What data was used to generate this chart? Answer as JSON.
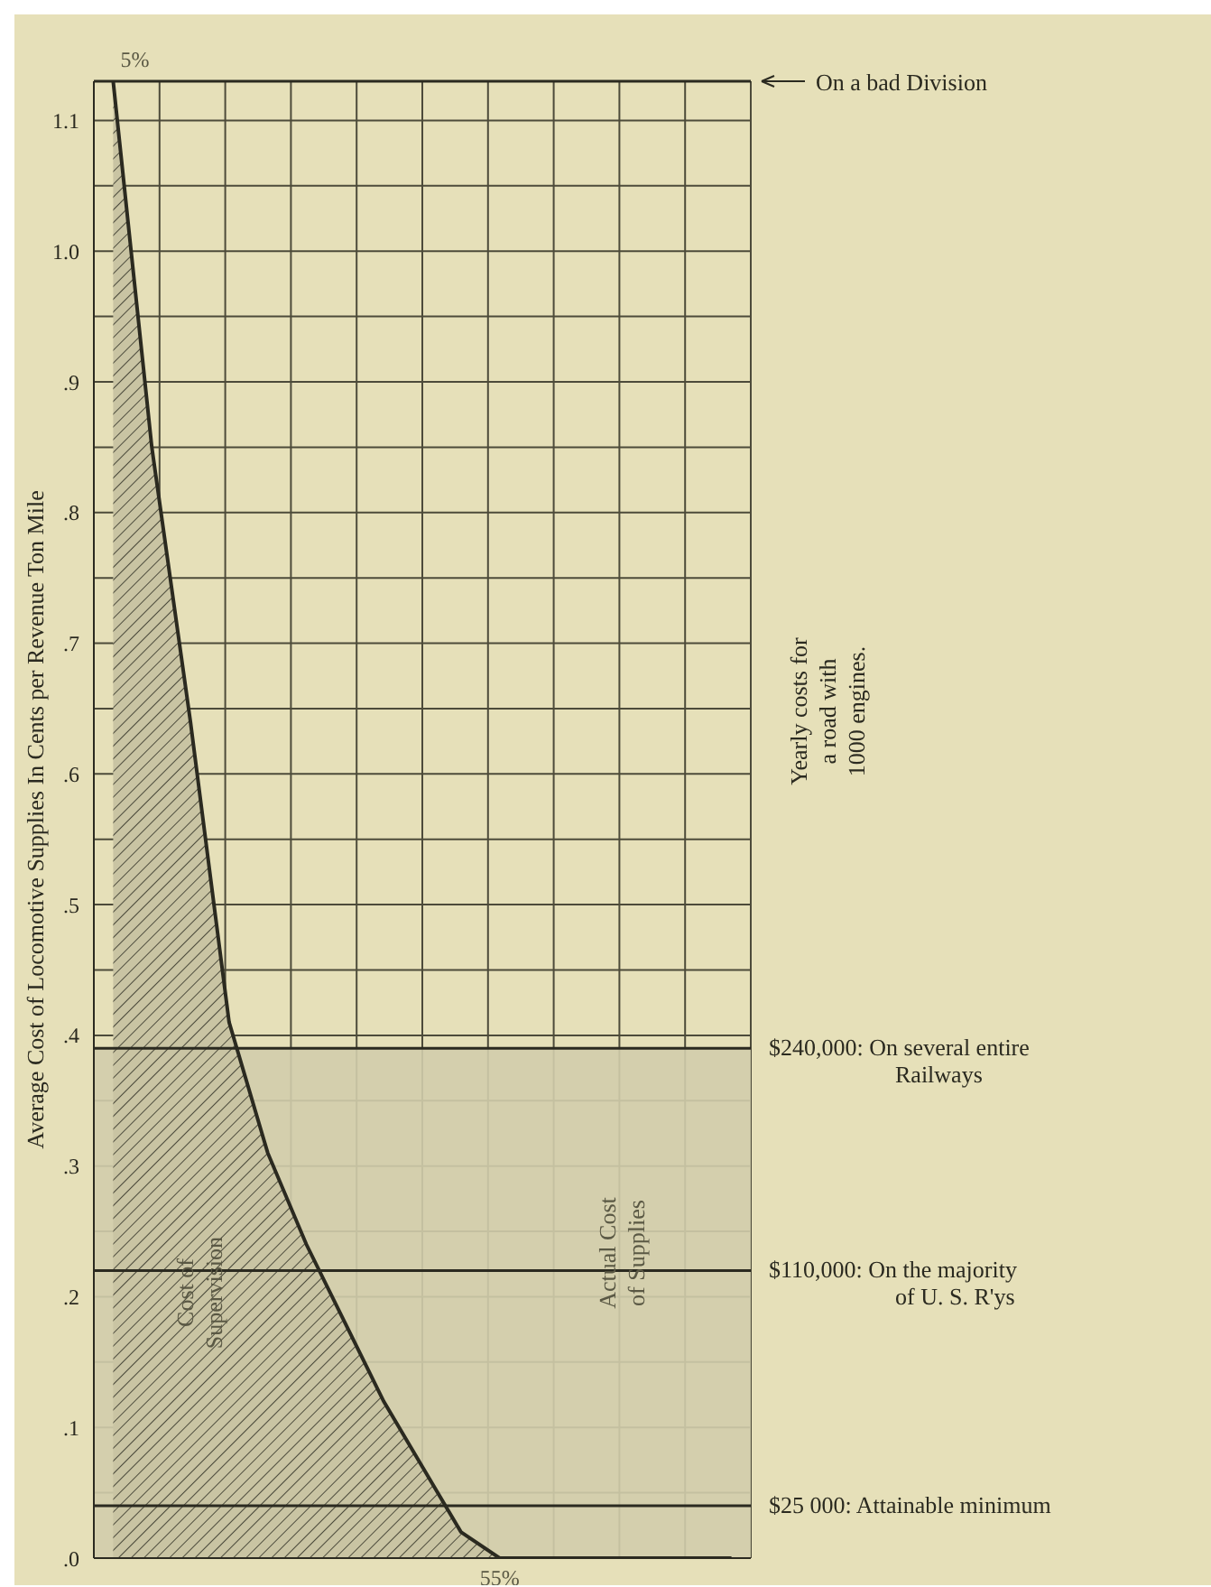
{
  "chart_data": {
    "type": "area",
    "ylabel": "Average Cost of Locomotive Supplies In Cents per Revenue Ton Mile",
    "categories": [
      null,
      null,
      null,
      null,
      null,
      null,
      null,
      null,
      null,
      null,
      null,
      null,
      null,
      null,
      null,
      null,
      null
    ],
    "ylim": [
      0,
      1.13
    ],
    "yticks": [
      {
        "value": 0,
        "label": ".0"
      },
      {
        "value": 0.05,
        "label": null
      },
      {
        "value": 0.1,
        "label": ".1"
      },
      {
        "value": 0.15,
        "label": null
      },
      {
        "value": 0.2,
        "label": ".2"
      },
      {
        "value": 0.25,
        "label": null
      },
      {
        "value": 0.3,
        "label": ".3"
      },
      {
        "value": 0.35,
        "label": null
      },
      {
        "value": 0.4,
        "label": ".4"
      },
      {
        "value": 0.45,
        "label": null
      },
      {
        "value": 0.5,
        "label": ".5"
      },
      {
        "value": 0.55,
        "label": null
      },
      {
        "value": 0.6,
        "label": ".6"
      },
      {
        "value": 0.65,
        "label": null
      },
      {
        "value": 0.7,
        "label": ".7"
      },
      {
        "value": 0.75,
        "label": null
      },
      {
        "value": 0.8,
        "label": ".8"
      },
      {
        "value": 0.85,
        "label": null
      },
      {
        "value": 0.9,
        "label": ".9"
      },
      {
        "value": 0.95,
        "label": null
      },
      {
        "value": 1.0,
        "label": "1.0"
      },
      {
        "value": 1.05,
        "label": null
      },
      {
        "value": 1.1,
        "label": "1.1"
      }
    ],
    "tick_labels": "y",
    "grid": true,
    "series": [
      {
        "color": "#2b2a20",
        "values": [
          1.13,
          0.85,
          0.64,
          0.41,
          0.31,
          0.24,
          0.18,
          0.12,
          0.07,
          0.02,
          0,
          0,
          0,
          0,
          0,
          0,
          0
        ]
      }
    ],
    "bands": [
      {
        "axis": "y",
        "from": 0,
        "to": 0.39,
        "color": "#d2cdac"
      }
    ],
    "ref_lines": [
      {
        "axis": "y",
        "value": 1.13,
        "label": "On a bad Division",
        "color": "#2b2a20"
      },
      {
        "axis": "y",
        "value": 0.39,
        "label": "$240,000: On several entire\nRailways",
        "color": "#2b2a20"
      },
      {
        "axis": "y",
        "value": 0.22,
        "label": "$110,000: On the majority\nof U. S. R'ys",
        "color": "#2b2a20"
      },
      {
        "axis": "y",
        "value": 0.04,
        "label": "$25 000: Attainable minimum",
        "color": "#2b2a20"
      }
    ],
    "annotations": [
      "Cost of\nSupervision",
      "Actual Cost\nof Supplies",
      "Yearly costs for\na road with\n1000 engines.",
      "5%",
      "55%"
    ]
  }
}
